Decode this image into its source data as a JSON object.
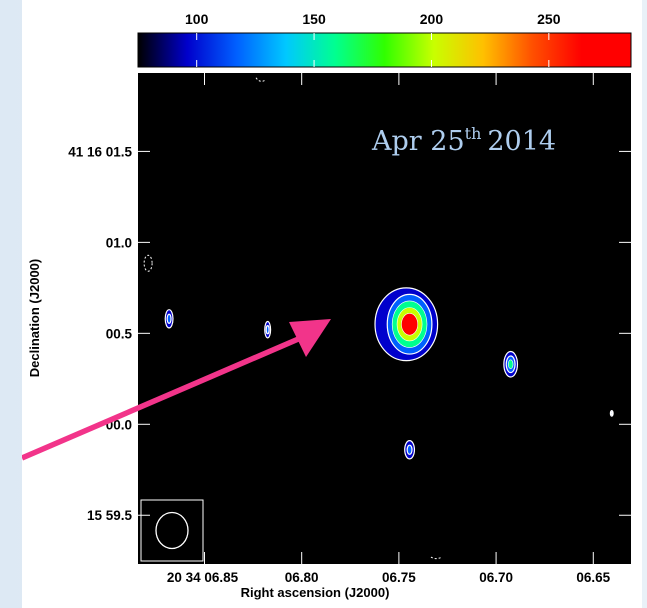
{
  "chart_data": {
    "type": "heatmap",
    "title": "",
    "annotation": {
      "text": "Apr 25",
      "superscript": "th",
      "year": "2014",
      "color": "#aecdee"
    },
    "xlabel": "Right ascension (J2000)",
    "ylabel": "Declination (J2000)",
    "x_ticks": [
      {
        "label": "20 34 06.85",
        "value_s": 6.85
      },
      {
        "label": "06.80",
        "value_s": 6.8
      },
      {
        "label": "06.75",
        "value_s": 6.75
      },
      {
        "label": "06.70",
        "value_s": 6.7
      },
      {
        "label": "06.65",
        "value_s": 6.65
      }
    ],
    "y_ticks": [
      {
        "label": "41 16 01.5",
        "value_s": 1.5
      },
      {
        "label": "01.0",
        "value_s": 1.0
      },
      {
        "label": "00.5",
        "value_s": 0.5
      },
      {
        "label": "00.0",
        "value_s": 0.0
      },
      {
        "label": "15 59.5",
        "value_s": -0.5
      }
    ],
    "xlim_s": [
      6.8842,
      6.6306
    ],
    "ylim_s": [
      -0.768,
      1.931
    ],
    "colorbar": {
      "ticks": [
        100,
        150,
        200,
        250
      ],
      "range": [
        75,
        285
      ],
      "colors": [
        "#000000",
        "#0000cc",
        "#0060ff",
        "#00c8ff",
        "#00ff90",
        "#30ff00",
        "#c8ff00",
        "#ffc000",
        "#ff5000",
        "#ff0000",
        "#ff0000"
      ]
    },
    "sources": [
      {
        "name": "main-source",
        "ra_s": 6.7445,
        "dec_s": 0.55,
        "rx_s": 0.014,
        "ry_s": 0.2,
        "peak": 285
      },
      {
        "name": "source-east",
        "ra_s": 6.6925,
        "dec_s": 0.33,
        "rx_s": 0.0035,
        "ry_s": 0.07,
        "peak": 165
      },
      {
        "name": "source-south",
        "ra_s": 6.7445,
        "dec_s": -0.14,
        "rx_s": 0.0025,
        "ry_s": 0.05,
        "peak": 120
      },
      {
        "name": "source-west-1",
        "ra_s": 6.8682,
        "dec_s": 0.58,
        "rx_s": 0.002,
        "ry_s": 0.05,
        "peak": 115
      },
      {
        "name": "source-west-2",
        "ra_s": 6.8175,
        "dec_s": 0.52,
        "rx_s": 0.0015,
        "ry_s": 0.045,
        "peak": 105
      },
      {
        "name": "point-far-east",
        "ra_s": 6.6405,
        "dec_s": 0.06,
        "rx_s": 0.0007,
        "ry_s": 0.015,
        "peak": 95
      }
    ],
    "beam": {
      "shape": "ellipse",
      "box": true
    },
    "arrow": {
      "color": "#f2348a",
      "points_to": "main-source"
    }
  }
}
